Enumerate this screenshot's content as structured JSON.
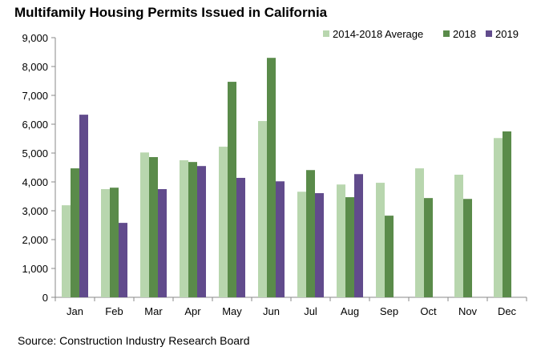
{
  "chart_data": {
    "type": "bar",
    "title": "Multifamily Housing Permits Issued in California",
    "source": "Source: Construction Industry Research Board",
    "xlabel": "",
    "ylabel": "",
    "ylim": [
      0,
      9000
    ],
    "yticks": [
      0,
      1000,
      2000,
      3000,
      4000,
      5000,
      6000,
      7000,
      8000,
      9000
    ],
    "ytick_labels": [
      "0",
      "1,000",
      "2,000",
      "3,000",
      "4,000",
      "5,000",
      "6,000",
      "7,000",
      "8,000",
      "9,000"
    ],
    "grid": false,
    "legend_position": "top-right",
    "categories": [
      "Jan",
      "Feb",
      "Mar",
      "Apr",
      "May",
      "Jun",
      "Jul",
      "Aug",
      "Sep",
      "Oct",
      "Nov",
      "Dec"
    ],
    "series": [
      {
        "name": "2014-2018 Average",
        "color": "#b8d6ae",
        "values": [
          3190,
          3750,
          5020,
          4750,
          5220,
          6110,
          3660,
          3910,
          3970,
          4470,
          4250,
          5520
        ]
      },
      {
        "name": "2018",
        "color": "#5a8b4a",
        "values": [
          4470,
          3800,
          4860,
          4690,
          7470,
          8300,
          4410,
          3470,
          2830,
          3440,
          3410,
          5750
        ]
      },
      {
        "name": "2019",
        "color": "#614b8c",
        "values": [
          6330,
          2580,
          3750,
          4550,
          4140,
          4020,
          3610,
          4270,
          null,
          null,
          null,
          null
        ]
      }
    ]
  }
}
